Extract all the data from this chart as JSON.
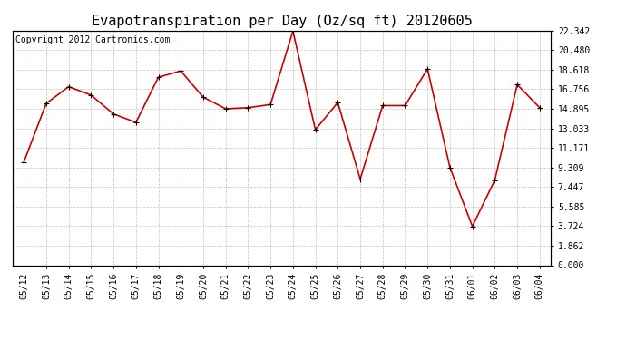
{
  "title": "Evapotranspiration per Day (Oz/sq ft) 20120605",
  "copyright": "Copyright 2012 Cartronics.com",
  "dates": [
    "05/12",
    "05/13",
    "05/14",
    "05/15",
    "05/16",
    "05/17",
    "05/18",
    "05/19",
    "05/20",
    "05/21",
    "05/22",
    "05/23",
    "05/24",
    "05/25",
    "05/26",
    "05/27",
    "05/28",
    "05/29",
    "05/30",
    "05/31",
    "06/01",
    "06/02",
    "06/03",
    "06/04"
  ],
  "values": [
    9.8,
    15.4,
    17.0,
    16.2,
    14.4,
    13.6,
    17.9,
    18.5,
    16.0,
    14.9,
    15.0,
    15.3,
    22.3,
    12.9,
    15.5,
    8.2,
    15.2,
    15.2,
    18.7,
    9.3,
    3.7,
    8.1,
    17.2,
    15.0
  ],
  "ylim": [
    0.0,
    22.342
  ],
  "yticks": [
    0.0,
    1.862,
    3.724,
    5.585,
    7.447,
    9.309,
    11.171,
    13.033,
    14.895,
    16.756,
    18.618,
    20.48,
    22.342
  ],
  "line_color": "#cc0000",
  "marker_color": "#cc0000",
  "bg_color": "#ffffff",
  "plot_bg_color": "#ffffff",
  "grid_color": "#bbbbbb",
  "title_fontsize": 11,
  "copyright_fontsize": 7,
  "tick_fontsize": 7
}
